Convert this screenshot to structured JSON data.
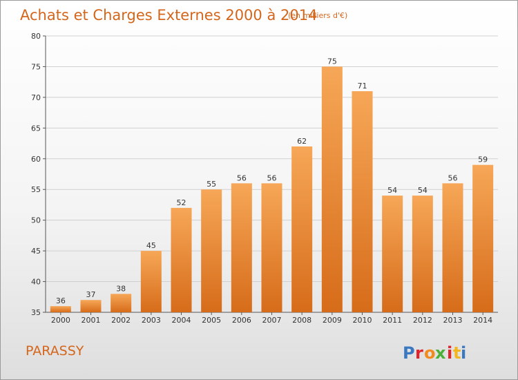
{
  "title": "Achats et Charges Externes 2000 à 2014",
  "subtitle": "(en milliers d'€)",
  "place": "PARASSY",
  "logo": {
    "letters": [
      "P",
      "r",
      "o",
      "x",
      "i",
      "t",
      "i"
    ],
    "colors": [
      "#3a78c2",
      "#e0222a",
      "#f28a1e",
      "#4caf3a",
      "#e0222a",
      "#f2b51e",
      "#3a78c2"
    ]
  },
  "colors": {
    "accent": "#d4661c",
    "bar_top": "#f6a757",
    "bar_bottom": "#d66c1a"
  },
  "chart_data": {
    "type": "bar",
    "categories": [
      "2000",
      "2001",
      "2002",
      "2003",
      "2004",
      "2005",
      "2006",
      "2007",
      "2008",
      "2009",
      "2010",
      "2011",
      "2012",
      "2013",
      "2014"
    ],
    "values": [
      36,
      37,
      38,
      45,
      52,
      55,
      56,
      56,
      62,
      75,
      71,
      54,
      54,
      56,
      59
    ],
    "ylim": [
      35,
      80
    ],
    "yticks": [
      35,
      40,
      45,
      50,
      55,
      60,
      65,
      70,
      75,
      80
    ],
    "grid": true
  }
}
